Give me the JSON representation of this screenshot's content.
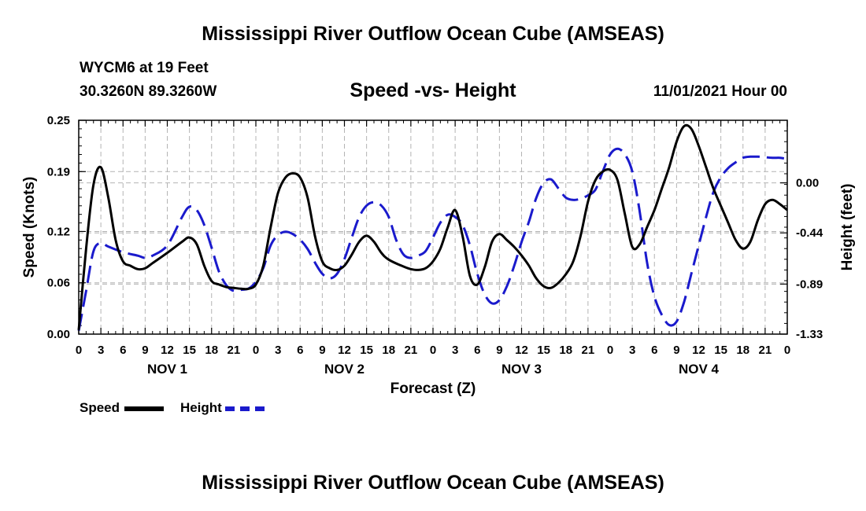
{
  "header": {
    "title": "Mississippi River Outflow Ocean Cube (AMSEAS)",
    "station": "WYCM6 at 19 Feet",
    "coords": "30.3260N  89.3260W",
    "subtitle": "Speed -vs- Height",
    "datetime": "11/01/2021 Hour 00"
  },
  "footer": {
    "title": "Mississippi River Outflow Ocean Cube (AMSEAS)"
  },
  "legend": {
    "speed_label": "Speed",
    "height_label": "Height"
  },
  "colors": {
    "speed": "#000000",
    "height": "#1a1acc",
    "grid": "#b4b4b4"
  },
  "chart_data": {
    "type": "line",
    "title": "Speed -vs- Height",
    "xlabel": "Forecast (Z)",
    "ylabel": "Speed (Knots)",
    "y2label": "Height (feet)",
    "xlim": [
      0,
      96
    ],
    "ylim": [
      0,
      0.25
    ],
    "y2lim": [
      -1.33,
      0.55
    ],
    "yticks": [
      "0.00",
      "0.06",
      "0.12",
      "0.19",
      "0.25"
    ],
    "y2ticks": [
      {
        "value": 0.0,
        "label": "0.00"
      },
      {
        "value": -0.44,
        "label": "-0.44"
      },
      {
        "value": -0.89,
        "label": "-0.89"
      },
      {
        "value": -1.33,
        "label": "-1.33"
      }
    ],
    "xtick_labels": [
      "0",
      "3",
      "6",
      "9",
      "12",
      "15",
      "18",
      "21",
      "0",
      "3",
      "6",
      "9",
      "12",
      "15",
      "18",
      "21",
      "0",
      "3",
      "6",
      "9",
      "12",
      "15",
      "18",
      "21",
      "0",
      "3",
      "6",
      "9",
      "12",
      "15",
      "18",
      "21",
      "0"
    ],
    "day_labels": [
      {
        "label": "NOV 1",
        "hour": 12
      },
      {
        "label": "NOV 2",
        "hour": 36
      },
      {
        "label": "NOV 3",
        "hour": 60
      },
      {
        "label": "NOV 4",
        "hour": 84
      }
    ],
    "series": [
      {
        "name": "Speed",
        "axis": "left",
        "style": "solid",
        "points": [
          [
            0,
            0.005
          ],
          [
            1,
            0.1
          ],
          [
            2,
            0.175
          ],
          [
            3,
            0.195
          ],
          [
            4,
            0.16
          ],
          [
            5,
            0.11
          ],
          [
            6,
            0.085
          ],
          [
            7,
            0.08
          ],
          [
            8,
            0.076
          ],
          [
            9,
            0.077
          ],
          [
            10,
            0.083
          ],
          [
            12,
            0.095
          ],
          [
            14,
            0.108
          ],
          [
            15,
            0.113
          ],
          [
            16,
            0.105
          ],
          [
            17,
            0.08
          ],
          [
            18,
            0.062
          ],
          [
            19,
            0.058
          ],
          [
            20,
            0.055
          ],
          [
            21,
            0.054
          ],
          [
            22,
            0.053
          ],
          [
            23,
            0.053
          ],
          [
            24,
            0.058
          ],
          [
            25,
            0.08
          ],
          [
            26,
            0.125
          ],
          [
            27,
            0.165
          ],
          [
            28,
            0.183
          ],
          [
            29,
            0.188
          ],
          [
            30,
            0.183
          ],
          [
            31,
            0.16
          ],
          [
            32,
            0.115
          ],
          [
            33,
            0.085
          ],
          [
            34,
            0.077
          ],
          [
            35,
            0.075
          ],
          [
            36,
            0.08
          ],
          [
            37,
            0.093
          ],
          [
            38,
            0.108
          ],
          [
            39,
            0.115
          ],
          [
            40,
            0.108
          ],
          [
            41,
            0.095
          ],
          [
            42,
            0.087
          ],
          [
            44,
            0.079
          ],
          [
            45,
            0.076
          ],
          [
            46,
            0.075
          ],
          [
            47,
            0.077
          ],
          [
            48,
            0.085
          ],
          [
            49,
            0.1
          ],
          [
            50,
            0.125
          ],
          [
            51,
            0.145
          ],
          [
            52,
            0.115
          ],
          [
            53,
            0.068
          ],
          [
            54,
            0.058
          ],
          [
            55,
            0.078
          ],
          [
            56,
            0.108
          ],
          [
            57,
            0.117
          ],
          [
            58,
            0.11
          ],
          [
            59,
            0.102
          ],
          [
            60,
            0.092
          ],
          [
            61,
            0.08
          ],
          [
            62,
            0.065
          ],
          [
            63,
            0.056
          ],
          [
            64,
            0.054
          ],
          [
            65,
            0.06
          ],
          [
            66,
            0.07
          ],
          [
            67,
            0.085
          ],
          [
            68,
            0.115
          ],
          [
            69,
            0.155
          ],
          [
            70,
            0.18
          ],
          [
            71,
            0.19
          ],
          [
            72,
            0.192
          ],
          [
            73,
            0.18
          ],
          [
            74,
            0.14
          ],
          [
            75,
            0.102
          ],
          [
            76,
            0.105
          ],
          [
            77,
            0.125
          ],
          [
            78,
            0.145
          ],
          [
            79,
            0.17
          ],
          [
            80,
            0.195
          ],
          [
            81,
            0.225
          ],
          [
            82,
            0.243
          ],
          [
            83,
            0.24
          ],
          [
            84,
            0.22
          ],
          [
            85,
            0.195
          ],
          [
            86,
            0.17
          ],
          [
            87,
            0.15
          ],
          [
            88,
            0.13
          ],
          [
            89,
            0.11
          ],
          [
            90,
            0.1
          ],
          [
            91,
            0.108
          ],
          [
            92,
            0.133
          ],
          [
            93,
            0.152
          ],
          [
            94,
            0.157
          ],
          [
            95,
            0.152
          ],
          [
            96,
            0.145
          ]
        ]
      },
      {
        "name": "Height",
        "axis": "right",
        "style": "dashed",
        "points": [
          [
            0,
            -1.3
          ],
          [
            1,
            -0.95
          ],
          [
            2,
            -0.6
          ],
          [
            3,
            -0.53
          ],
          [
            4,
            -0.56
          ],
          [
            6,
            -0.61
          ],
          [
            8,
            -0.64
          ],
          [
            9,
            -0.66
          ],
          [
            10,
            -0.64
          ],
          [
            12,
            -0.55
          ],
          [
            14,
            -0.3
          ],
          [
            15,
            -0.21
          ],
          [
            16,
            -0.24
          ],
          [
            17,
            -0.37
          ],
          [
            18,
            -0.57
          ],
          [
            19,
            -0.78
          ],
          [
            20,
            -0.9
          ],
          [
            21,
            -0.95
          ],
          [
            22,
            -0.94
          ],
          [
            23,
            -0.93
          ],
          [
            24,
            -0.87
          ],
          [
            25,
            -0.75
          ],
          [
            26,
            -0.55
          ],
          [
            27,
            -0.46
          ],
          [
            28,
            -0.43
          ],
          [
            29,
            -0.45
          ],
          [
            30,
            -0.5
          ],
          [
            31,
            -0.58
          ],
          [
            32,
            -0.7
          ],
          [
            33,
            -0.8
          ],
          [
            34,
            -0.84
          ],
          [
            35,
            -0.8
          ],
          [
            36,
            -0.67
          ],
          [
            37,
            -0.48
          ],
          [
            38,
            -0.3
          ],
          [
            39,
            -0.2
          ],
          [
            40,
            -0.17
          ],
          [
            41,
            -0.2
          ],
          [
            42,
            -0.3
          ],
          [
            43,
            -0.5
          ],
          [
            44,
            -0.63
          ],
          [
            45,
            -0.66
          ],
          [
            46,
            -0.64
          ],
          [
            47,
            -0.6
          ],
          [
            48,
            -0.48
          ],
          [
            49,
            -0.35
          ],
          [
            50,
            -0.28
          ],
          [
            51,
            -0.3
          ],
          [
            52,
            -0.37
          ],
          [
            53,
            -0.55
          ],
          [
            54,
            -0.8
          ],
          [
            55,
            -0.98
          ],
          [
            56,
            -1.06
          ],
          [
            57,
            -1.03
          ],
          [
            58,
            -0.91
          ],
          [
            59,
            -0.73
          ],
          [
            60,
            -0.52
          ],
          [
            61,
            -0.34
          ],
          [
            62,
            -0.13
          ],
          [
            63,
            0.0
          ],
          [
            64,
            0.03
          ],
          [
            65,
            -0.05
          ],
          [
            66,
            -0.13
          ],
          [
            67,
            -0.15
          ],
          [
            68,
            -0.14
          ],
          [
            69,
            -0.11
          ],
          [
            70,
            -0.06
          ],
          [
            71,
            0.1
          ],
          [
            72,
            0.25
          ],
          [
            73,
            0.3
          ],
          [
            74,
            0.25
          ],
          [
            75,
            0.1
          ],
          [
            76,
            -0.25
          ],
          [
            77,
            -0.7
          ],
          [
            78,
            -1.0
          ],
          [
            79,
            -1.16
          ],
          [
            80,
            -1.25
          ],
          [
            81,
            -1.22
          ],
          [
            82,
            -1.05
          ],
          [
            83,
            -0.8
          ],
          [
            84,
            -0.55
          ],
          [
            85,
            -0.3
          ],
          [
            86,
            -0.08
          ],
          [
            87,
            0.05
          ],
          [
            88,
            0.13
          ],
          [
            89,
            0.18
          ],
          [
            90,
            0.22
          ],
          [
            91,
            0.23
          ],
          [
            92,
            0.23
          ],
          [
            93,
            0.225
          ],
          [
            94,
            0.22
          ],
          [
            95,
            0.22
          ],
          [
            96,
            0.21
          ]
        ]
      }
    ]
  }
}
